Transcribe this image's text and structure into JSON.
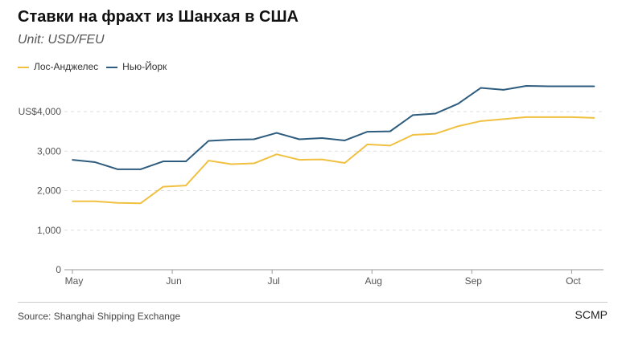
{
  "chart_data": {
    "type": "line",
    "title": "Ставки на фрахт из Шанхая в США",
    "subtitle": "Unit: USD/FEU",
    "xlabel": "",
    "ylabel": "",
    "ylim": [
      0,
      4700
    ],
    "yticks": [
      0,
      1000,
      2000,
      3000,
      4000
    ],
    "ytick_labels": [
      "0",
      "1,000",
      "2,000",
      "3,000",
      "US$4,000"
    ],
    "x_ticks": [
      {
        "index": 0,
        "label": "May"
      },
      {
        "index": 4.4,
        "label": "Jun"
      },
      {
        "index": 8.8,
        "label": "Jul"
      },
      {
        "index": 13.2,
        "label": "Aug"
      },
      {
        "index": 17.6,
        "label": "Sep"
      },
      {
        "index": 22,
        "label": "Oct"
      }
    ],
    "legend": "top-left",
    "grid": true,
    "series": [
      {
        "name": "Лос-Анджелес",
        "color": "#f0c040",
        "values": [
          1730,
          1730,
          1690,
          1680,
          2100,
          2130,
          2760,
          2670,
          2690,
          2920,
          2780,
          2790,
          2700,
          3170,
          3140,
          3410,
          3440,
          3630,
          3760,
          3810,
          3860,
          3860,
          3860,
          3840
        ]
      },
      {
        "name": "Нью-Йорк",
        "color": "#2e5c7e",
        "values": [
          2780,
          2720,
          2540,
          2540,
          2740,
          2740,
          3260,
          3290,
          3300,
          3460,
          3300,
          3330,
          3270,
          3490,
          3500,
          3910,
          3950,
          4200,
          4600,
          4550,
          4650,
          4640,
          4640,
          4640
        ]
      }
    ]
  },
  "footer": {
    "source": "Source: Shanghai Shipping Exchange",
    "brand": "SCMP"
  }
}
